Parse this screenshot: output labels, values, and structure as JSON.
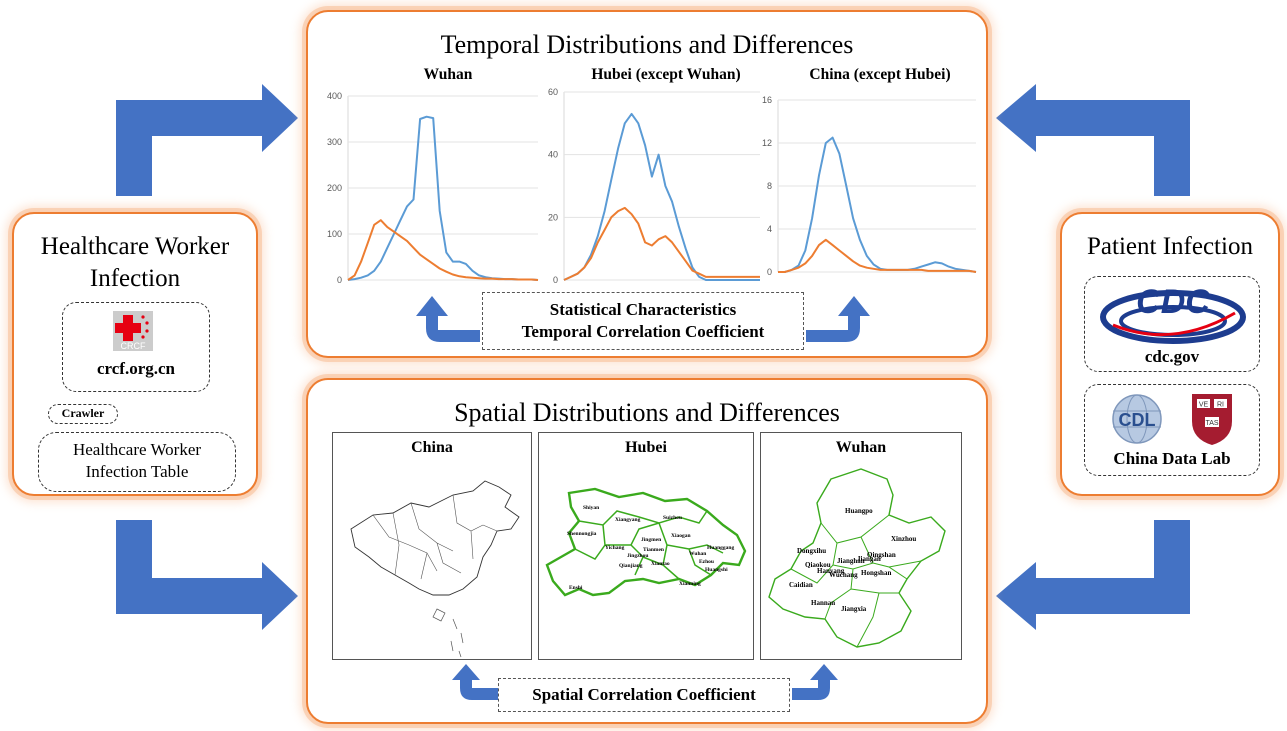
{
  "left_panel": {
    "title_line1": "Healthcare Worker",
    "title_line2": "Infection",
    "logo_text": "CRCF",
    "site": "crcf.org.cn",
    "crawler": "Crawler",
    "table_line1": "Healthcare Worker",
    "table_line2": "Infection Table"
  },
  "right_panel": {
    "title": "Patient Infection",
    "cdc_logo_text": "CDC",
    "cdc_site": "cdc.gov",
    "cdl_logo_text": "CDL",
    "harvard_shield": [
      "VE",
      "RI",
      "TAS"
    ],
    "datalab": "China Data Lab"
  },
  "temporal": {
    "title": "Temporal Distributions and Differences",
    "stats_line1": "Statistical Characteristics",
    "stats_line2": "Temporal Correlation Coefficient"
  },
  "spatial": {
    "title": "Spatial Distributions and Differences",
    "correlation": "Spatial Correlation Coefficient",
    "maps": [
      {
        "title": "China",
        "labels": []
      },
      {
        "title": "Hubei",
        "labels": [
          "Shiyan",
          "Xiangyang",
          "Suizhou",
          "Shennongjia",
          "Yichang",
          "Jingmen",
          "Xiaogan",
          "Huanggang",
          "Enshi",
          "Jingzhou",
          "Qianjiang",
          "Xiantao",
          "Wuhan",
          "Ezhou",
          "Huangshi",
          "Tianmen",
          "Xianning"
        ]
      },
      {
        "title": "Wuhan",
        "labels": [
          "Huangpo",
          "Xinzhou",
          "Dongxihu",
          "Jianghan",
          "Qiaokou",
          "Jiangan",
          "Qingshan",
          "Hanyang",
          "Wuchang",
          "Hongshan",
          "Caidian",
          "Hannan",
          "Jiangxia"
        ]
      }
    ]
  },
  "colors": {
    "panel_border": "#ed7d31",
    "arrow_blue": "#4472c4",
    "series_blue": "#5b9bd5",
    "series_orange": "#ed7d31",
    "map_green": "#3aaa1d"
  },
  "chart_data": [
    {
      "type": "line",
      "title": "Wuhan",
      "ylim": [
        0,
        400
      ],
      "yticks": [
        "0",
        "100",
        "200",
        "300",
        "400"
      ],
      "grid": true,
      "series": [
        {
          "color": "#5b9bd5",
          "values": [
            0,
            2,
            5,
            10,
            20,
            40,
            70,
            100,
            130,
            160,
            175,
            350,
            355,
            352,
            150,
            60,
            40,
            40,
            35,
            20,
            10,
            6,
            4,
            3,
            2,
            2,
            1,
            1,
            1,
            0
          ]
        },
        {
          "color": "#ed7d31",
          "values": [
            0,
            10,
            40,
            80,
            120,
            130,
            115,
            105,
            95,
            85,
            70,
            55,
            45,
            35,
            25,
            18,
            12,
            8,
            6,
            5,
            4,
            3,
            3,
            2,
            2,
            2,
            1,
            1,
            1,
            0
          ]
        }
      ]
    },
    {
      "type": "line",
      "title": "Hubei (except Wuhan)",
      "ylim": [
        0,
        60
      ],
      "yticks": [
        "0",
        "20",
        "40",
        "60"
      ],
      "grid": true,
      "series": [
        {
          "color": "#5b9bd5",
          "values": [
            0,
            1,
            2,
            4,
            8,
            14,
            22,
            32,
            42,
            50,
            53,
            50,
            43,
            33,
            40,
            30,
            25,
            17,
            10,
            4,
            1,
            0,
            0,
            0,
            0,
            0,
            0,
            0,
            0,
            0
          ]
        },
        {
          "color": "#ed7d31",
          "values": [
            0,
            1,
            2,
            4,
            7,
            12,
            16,
            20,
            22,
            23,
            21,
            18,
            12,
            11,
            13,
            14,
            12,
            9,
            6,
            3,
            2,
            1,
            1,
            1,
            1,
            1,
            1,
            1,
            1,
            1
          ]
        }
      ]
    },
    {
      "type": "line",
      "title": "China (except Hubei)",
      "ylim": [
        0,
        16
      ],
      "yticks": [
        "0",
        "4",
        "8",
        "12",
        "16"
      ],
      "grid": true,
      "series": [
        {
          "color": "#5b9bd5",
          "values": [
            0,
            0,
            0.2,
            0.6,
            2,
            5,
            9,
            12,
            12.5,
            11,
            8,
            5,
            3,
            1.5,
            0.7,
            0.3,
            0.2,
            0.2,
            0.2,
            0.2,
            0.3,
            0.5,
            0.7,
            0.9,
            0.8,
            0.5,
            0.3,
            0.2,
            0.1,
            0
          ]
        },
        {
          "color": "#ed7d31",
          "values": [
            0,
            0,
            0.2,
            0.4,
            0.8,
            1.5,
            2.5,
            3,
            2.5,
            2,
            1.5,
            1,
            0.6,
            0.4,
            0.3,
            0.2,
            0.2,
            0.2,
            0.2,
            0.2,
            0.2,
            0.2,
            0.1,
            0.1,
            0.1,
            0.1,
            0.1,
            0.1,
            0.1,
            0
          ]
        }
      ]
    }
  ]
}
